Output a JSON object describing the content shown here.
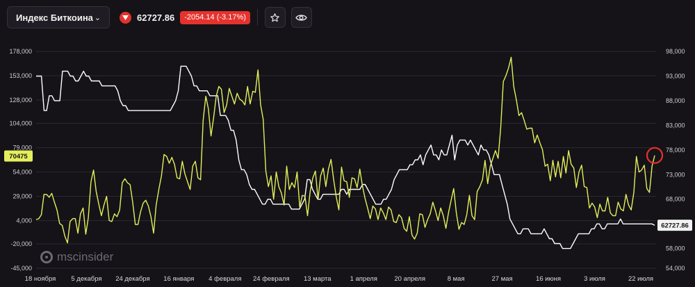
{
  "toolbar": {
    "instrument": "Индекс Биткоина",
    "price": "62727.86",
    "change": "-2054.14 (-3.17%)",
    "icons": [
      "chevron-down-icon",
      "arrow-down-icon",
      "star-icon",
      "eye-icon"
    ]
  },
  "watermark": "mscinsider",
  "colors": {
    "background": "#151318",
    "left_series": "#e4ef5c",
    "right_series": "#ffffff",
    "down": "#e5322d",
    "highlight": "#e5322d"
  },
  "chart_data": {
    "type": "line",
    "x_labels": [
      "18 ноября",
      "5 декабря",
      "24 декабря",
      "16 января",
      "4 февраля",
      "24 февраля",
      "13 марта",
      "1 апреля",
      "20 апреля",
      "8 мая",
      "27 мая",
      "16 июня",
      "3 июля",
      "22 июля"
    ],
    "left_axis": {
      "ticks": [
        "178,000",
        "153,000",
        "128,000",
        "104,000",
        "79,000",
        "54,000",
        "29,000",
        "4,000",
        "-20,000",
        "-45,000"
      ],
      "ylim": [
        -45000,
        178000
      ],
      "current_label": "70475",
      "current_value": 70475
    },
    "right_axis": {
      "ticks": [
        "98,000",
        "93,000",
        "88,000",
        "83,000",
        "78,000",
        "73,000",
        "68,000",
        "63,000",
        "58,000",
        "54,000"
      ],
      "ylim": [
        54000,
        98000
      ],
      "current_label": "62727.86",
      "current_value": 62727.86
    },
    "series": [
      {
        "axis": "left",
        "values": [
          5000,
          6000,
          10000,
          31000,
          31000,
          28000,
          32000,
          23000,
          15000,
          1000,
          -1000,
          -12000,
          -19000,
          3000,
          6000,
          6000,
          -9000,
          11000,
          17000,
          -10000,
          7000,
          44000,
          56000,
          34000,
          21000,
          9000,
          20000,
          29000,
          4000,
          3000,
          11000,
          8000,
          15000,
          43000,
          47000,
          43000,
          41000,
          23000,
          0,
          0,
          13000,
          22000,
          25000,
          19000,
          8000,
          -9000,
          20000,
          36000,
          50000,
          72000,
          70000,
          63000,
          69000,
          62000,
          48000,
          47000,
          65000,
          52000,
          44000,
          36000,
          60000,
          65000,
          48000,
          46000,
          107000,
          132000,
          119000,
          91000,
          110000,
          132000,
          142000,
          139000,
          115000,
          123000,
          140000,
          132000,
          124000,
          135000,
          129000,
          127000,
          123000,
          142000,
          124000,
          137000,
          136000,
          159000,
          123000,
          108000,
          55000,
          39000,
          50000,
          26000,
          54000,
          39000,
          32000,
          20000,
          60000,
          36000,
          43000,
          38000,
          54000,
          18000,
          30000,
          29000,
          9000,
          34000,
          48000,
          55000,
          26000,
          50000,
          58000,
          39000,
          57000,
          67000,
          46000,
          28000,
          15000,
          59000,
          45000,
          44000,
          28000,
          48000,
          47000,
          38000,
          57000,
          40000,
          27000,
          17000,
          6000,
          19000,
          16000,
          5000,
          17000,
          12000,
          5000,
          18000,
          15000,
          3000,
          2000,
          10000,
          7000,
          -4000,
          -7000,
          8000,
          -11000,
          -15000,
          -9000,
          11000,
          10000,
          -3000,
          5000,
          11000,
          23000,
          14000,
          4000,
          17000,
          9000,
          -4000,
          12000,
          25000,
          37000,
          12000,
          -5000,
          2000,
          0,
          10000,
          30000,
          9000,
          5000,
          34000,
          39000,
          46000,
          66000,
          42000,
          60000,
          68000,
          76000,
          68000,
          99000,
          147000,
          153000,
          161000,
          172000,
          142000,
          128000,
          112000,
          115000,
          107000,
          98000,
          99000,
          99000,
          84000,
          92000,
          84000,
          77000,
          60000,
          62000,
          45000,
          66000,
          49000,
          65000,
          48000,
          70000,
          53000,
          76000,
          62000,
          58000,
          38000,
          54000,
          61000,
          39000,
          38000,
          17000,
          22000,
          18000,
          7000,
          21000,
          14000,
          14000,
          28000,
          12000,
          9000,
          9000,
          23000,
          16000,
          14000,
          31000,
          20000,
          15000,
          33000,
          70000,
          54000,
          56000,
          61000,
          37000,
          33000,
          60000,
          71000
        ]
      },
      {
        "axis": "right",
        "values": [
          93000,
          93000,
          93000,
          86000,
          86000,
          89000,
          89000,
          88000,
          88000,
          88000,
          94000,
          94000,
          94000,
          93000,
          93000,
          92000,
          92000,
          93000,
          94000,
          93000,
          93000,
          92000,
          92000,
          92000,
          92000,
          91000,
          91000,
          91000,
          91000,
          91000,
          91000,
          90000,
          88000,
          87000,
          87000,
          86000,
          86000,
          86000,
          86000,
          86000,
          86000,
          86000,
          86000,
          86000,
          86000,
          86000,
          86000,
          86000,
          86000,
          86000,
          86000,
          86000,
          87000,
          88000,
          90000,
          95000,
          95000,
          95000,
          94000,
          93000,
          91000,
          91000,
          90000,
          90000,
          90000,
          90000,
          89000,
          89000,
          89000,
          89000,
          85000,
          85000,
          85000,
          84000,
          82000,
          82000,
          80000,
          76000,
          74000,
          74000,
          73000,
          71000,
          70000,
          70000,
          69000,
          68000,
          67000,
          67000,
          68000,
          68000,
          67000,
          67000,
          67000,
          67000,
          67000,
          67000,
          67000,
          66000,
          66000,
          66000,
          66000,
          67000,
          68000,
          72000,
          72000,
          70000,
          69000,
          68000,
          68000,
          69000,
          69000,
          69000,
          69000,
          69000,
          69000,
          69000,
          70000,
          70000,
          69000,
          70000,
          70000,
          70000,
          70000,
          70000,
          71000,
          71000,
          70000,
          69000,
          68000,
          67000,
          67000,
          67000,
          68000,
          68000,
          69000,
          70000,
          72000,
          73000,
          74000,
          74000,
          74000,
          74000,
          75000,
          75000,
          76000,
          76000,
          77000,
          75000,
          77000,
          78000,
          79000,
          77000,
          77000,
          76000,
          78000,
          77000,
          77000,
          79000,
          81000,
          76000,
          79000,
          80000,
          80000,
          80000,
          79000,
          80000,
          79000,
          78000,
          77000,
          79000,
          78000,
          78000,
          77000,
          75000,
          73000,
          73000,
          73000,
          71000,
          69000,
          67000,
          64000,
          63000,
          62000,
          61000,
          61000,
          62000,
          62000,
          62000,
          61000,
          61000,
          61000,
          61000,
          61000,
          62000,
          61000,
          60000,
          60000,
          59000,
          59000,
          59000,
          58000,
          58000,
          58000,
          58000,
          59000,
          60000,
          61000,
          61000,
          61000,
          61000,
          61000,
          62000,
          62000,
          63000,
          63000,
          62000,
          62000,
          63000,
          63000,
          63000,
          63000,
          63000,
          64000,
          63000,
          63000,
          63000,
          63000,
          63000,
          63000,
          63000,
          63000,
          63000,
          63000,
          63000,
          63000,
          62700
        ]
      }
    ],
    "grid": "horizontal",
    "annotations": [
      "circle at latest point of left series"
    ]
  }
}
